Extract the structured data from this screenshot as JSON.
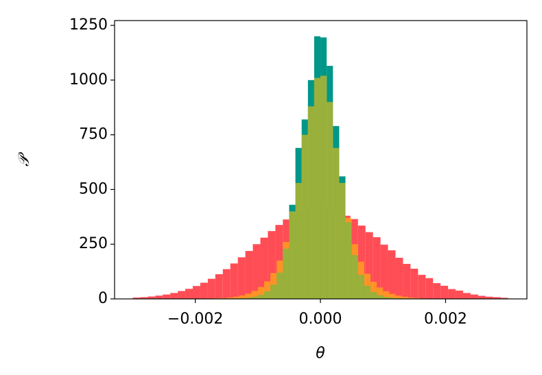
{
  "chart_data": {
    "type": "histogram",
    "xlabel": "θ",
    "ylabel": "𝒫",
    "xlim": [
      -0.00329,
      0.0033
    ],
    "ylim": [
      0,
      1272
    ],
    "xticks": [
      {
        "value": -0.002,
        "label": "−0.002"
      },
      {
        "value": 0,
        "label": "0.000"
      },
      {
        "value": 0.002,
        "label": "0.002"
      }
    ],
    "yticks": [
      0,
      250,
      500,
      750,
      1000,
      1250
    ],
    "series": [
      {
        "color": "#ff4d55",
        "alpha": 1,
        "bins": [
          -0.003,
          -0.00288,
          -0.00276,
          -0.00264,
          -0.00252,
          -0.0024,
          -0.00228,
          -0.00216,
          -0.00204,
          -0.00192,
          -0.0018,
          -0.00168,
          -0.00156,
          -0.00144,
          -0.00132,
          -0.0012,
          -0.00108,
          -0.00096,
          -0.00084,
          -0.00072,
          -0.0006,
          -0.00048,
          -0.00036,
          -0.00024,
          -0.00012,
          0,
          0.00012,
          0.00024,
          0.00036,
          0.00048,
          0.0006,
          0.00072,
          0.00084,
          0.00096,
          0.00108,
          0.0012,
          0.00132,
          0.00144,
          0.00156,
          0.00168,
          0.0018,
          0.00192,
          0.00204,
          0.00216,
          0.00228,
          0.0024,
          0.00252,
          0.00264,
          0.00276,
          0.00288,
          0.003
        ],
        "values": [
          6,
          8,
          11,
          15,
          20,
          27,
          36,
          46,
          59,
          74,
          92,
          113,
          136,
          162,
          190,
          219,
          250,
          280,
          310,
          338,
          363,
          385,
          401,
          413,
          419,
          422,
          410,
          398,
          380,
          365,
          335,
          305,
          282,
          248,
          222,
          188,
          160,
          138,
          110,
          95,
          72,
          60,
          45,
          38,
          27,
          20,
          14,
          10,
          8,
          5
        ]
      },
      {
        "color": "#009688",
        "alpha": 1,
        "bins": [
          -0.0025,
          -0.0024,
          -0.0023,
          -0.0022,
          -0.0021,
          -0.002,
          -0.0019,
          -0.0018,
          -0.0017,
          -0.0016,
          -0.0015,
          -0.0014,
          -0.0013,
          -0.0012,
          -0.0011,
          -0.001,
          -0.0009,
          -0.0008,
          -0.0007,
          -0.0006,
          -0.0005,
          -0.0004,
          -0.0003,
          -0.0002,
          -0.0001,
          0,
          0.0001,
          0.0002,
          0.0003,
          0.0004,
          0.0005,
          0.0006,
          0.0007,
          0.0008,
          0.0009,
          0.001,
          0.0011,
          0.0012,
          0.0013,
          0.0014,
          0.0015,
          0.0016,
          0.0017,
          0.0018,
          0.0019,
          0.002,
          0.0021,
          0.0022,
          0.0023,
          0.0024,
          0.0025
        ],
        "values": [
          0,
          0,
          0,
          0,
          0,
          0,
          0,
          0,
          0,
          1,
          1,
          2,
          3,
          5,
          10,
          18,
          35,
          65,
          120,
          230,
          430,
          690,
          820,
          1000,
          1200,
          1195,
          1065,
          790,
          560,
          350,
          200,
          110,
          60,
          32,
          17,
          9,
          5,
          3,
          2,
          1,
          1,
          0,
          0,
          0,
          0,
          0,
          0,
          0,
          0,
          0
        ]
      },
      {
        "color": "#ffc107",
        "alpha": 0.6,
        "bins": [
          -0.0025,
          -0.0024,
          -0.0023,
          -0.0022,
          -0.0021,
          -0.002,
          -0.0019,
          -0.0018,
          -0.0017,
          -0.0016,
          -0.0015,
          -0.0014,
          -0.0013,
          -0.0012,
          -0.0011,
          -0.001,
          -0.0009,
          -0.0008,
          -0.0007,
          -0.0006,
          -0.0005,
          -0.0004,
          -0.0003,
          -0.0002,
          -0.0001,
          0,
          0.0001,
          0.0002,
          0.0003,
          0.0004,
          0.0005,
          0.0006,
          0.0007,
          0.0008,
          0.0009,
          0.001,
          0.0011,
          0.0012,
          0.0013,
          0.0014,
          0.0015,
          0.0016,
          0.0017,
          0.0018,
          0.0019,
          0.002,
          0.0021,
          0.0022,
          0.0023,
          0.0024,
          0.0025
        ],
        "values": [
          0,
          0,
          0,
          0,
          0,
          1,
          1,
          2,
          3,
          4,
          6,
          10,
          16,
          24,
          36,
          54,
          80,
          118,
          175,
          260,
          400,
          530,
          750,
          880,
          1010,
          1020,
          900,
          690,
          530,
          370,
          250,
          170,
          115,
          78,
          52,
          35,
          23,
          15,
          10,
          6,
          4,
          2,
          1,
          1,
          0,
          0,
          0,
          0,
          0,
          0
        ]
      }
    ]
  }
}
